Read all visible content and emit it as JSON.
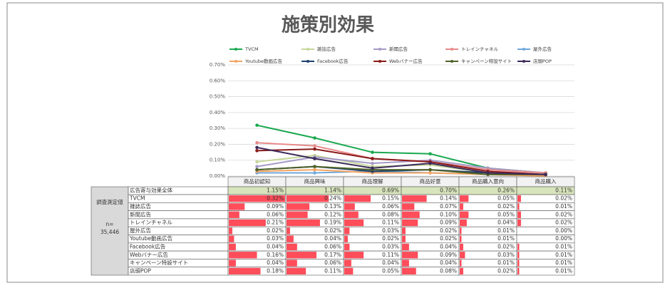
{
  "chart_data": {
    "type": "line",
    "title": "施策別効果",
    "categories": [
      "商品初認知",
      "商品興味",
      "商品理解",
      "商品好意",
      "商品購入意向",
      "商品購入"
    ],
    "ylim": [
      0,
      0.7
    ],
    "yticks": [
      {
        "value": 0,
        "label": "0.00%"
      },
      {
        "value": 0.1,
        "label": "0.10%"
      },
      {
        "value": 0.2,
        "label": "0.20%"
      },
      {
        "value": 0.3,
        "label": "0.30%"
      },
      {
        "value": 0.4,
        "label": "0.40%"
      },
      {
        "value": 0.5,
        "label": "0.50%"
      },
      {
        "value": 0.6,
        "label": "0.60%"
      },
      {
        "value": 0.7,
        "label": "0.70%"
      }
    ],
    "grid": true,
    "series": [
      {
        "name": "TVCM",
        "color": "#1aa84f",
        "values": [
          0.32,
          0.24,
          0.15,
          0.14,
          0.05,
          0.02
        ]
      },
      {
        "name": "雑誌広告",
        "color": "#c5d89a",
        "values": [
          0.09,
          0.13,
          0.06,
          0.07,
          0.02,
          0.01
        ]
      },
      {
        "name": "新聞広告",
        "color": "#a59ac6",
        "values": [
          0.06,
          0.12,
          0.08,
          0.1,
          0.05,
          0.02
        ]
      },
      {
        "name": "トレインチャネル",
        "color": "#e88a8a",
        "values": [
          0.21,
          0.19,
          0.11,
          0.09,
          0.04,
          0.02
        ]
      },
      {
        "name": "屋外広告",
        "color": "#6fa8dc",
        "values": [
          0.02,
          0.02,
          0.03,
          0.02,
          0.01,
          0.0
        ]
      },
      {
        "name": "Youtube動画広告",
        "color": "#f4a460",
        "values": [
          0.03,
          0.04,
          0.02,
          0.02,
          0.01,
          0.0
        ]
      },
      {
        "name": "Facebook広告",
        "color": "#1f3f6e",
        "values": [
          0.04,
          0.06,
          0.03,
          0.04,
          0.02,
          0.01
        ]
      },
      {
        "name": "Webバナー広告",
        "color": "#8b1a1a",
        "values": [
          0.16,
          0.17,
          0.11,
          0.09,
          0.03,
          0.01
        ]
      },
      {
        "name": "キャンペーン特設サイト",
        "color": "#4f6228",
        "values": [
          0.04,
          0.06,
          0.04,
          0.04,
          0.01,
          0.01
        ]
      },
      {
        "name": "店頭POP",
        "color": "#3b2a5a",
        "values": [
          0.18,
          0.11,
          0.05,
          0.08,
          0.02,
          0.01
        ]
      }
    ]
  },
  "table": {
    "side_label": "調査測定値",
    "n_label": "n=",
    "n_value": "35,446",
    "total_row": {
      "label": "広告寄与効果全体",
      "cells": [
        "1.15%",
        "1.14%",
        "0.69%",
        "0.70%",
        "0.26%",
        "0.11%"
      ]
    },
    "rows": [
      [
        "0.32%",
        "0.24%",
        "0.15%",
        "0.14%",
        "0.05%",
        "0.02%"
      ],
      [
        "0.09%",
        "0.13%",
        "0.06%",
        "0.07%",
        "0.02%",
        "0.01%"
      ],
      [
        "0.06%",
        "0.12%",
        "0.08%",
        "0.10%",
        "0.05%",
        "0.02%"
      ],
      [
        "0.21%",
        "0.19%",
        "0.11%",
        "0.09%",
        "0.04%",
        "0.02%"
      ],
      [
        "0.02%",
        "0.02%",
        "0.03%",
        "0.02%",
        "0.01%",
        "0.00%"
      ],
      [
        "0.03%",
        "0.04%",
        "0.02%",
        "0.02%",
        "0.01%",
        "0.00%"
      ],
      [
        "0.04%",
        "0.06%",
        "0.03%",
        "0.04%",
        "0.02%",
        "0.01%"
      ],
      [
        "0.16%",
        "0.17%",
        "0.11%",
        "0.09%",
        "0.03%",
        "0.01%"
      ],
      [
        "0.04%",
        "0.06%",
        "0.04%",
        "0.04%",
        "0.01%",
        "0.01%"
      ],
      [
        "0.18%",
        "0.11%",
        "0.05%",
        "0.08%",
        "0.02%",
        "0.01%"
      ]
    ]
  }
}
